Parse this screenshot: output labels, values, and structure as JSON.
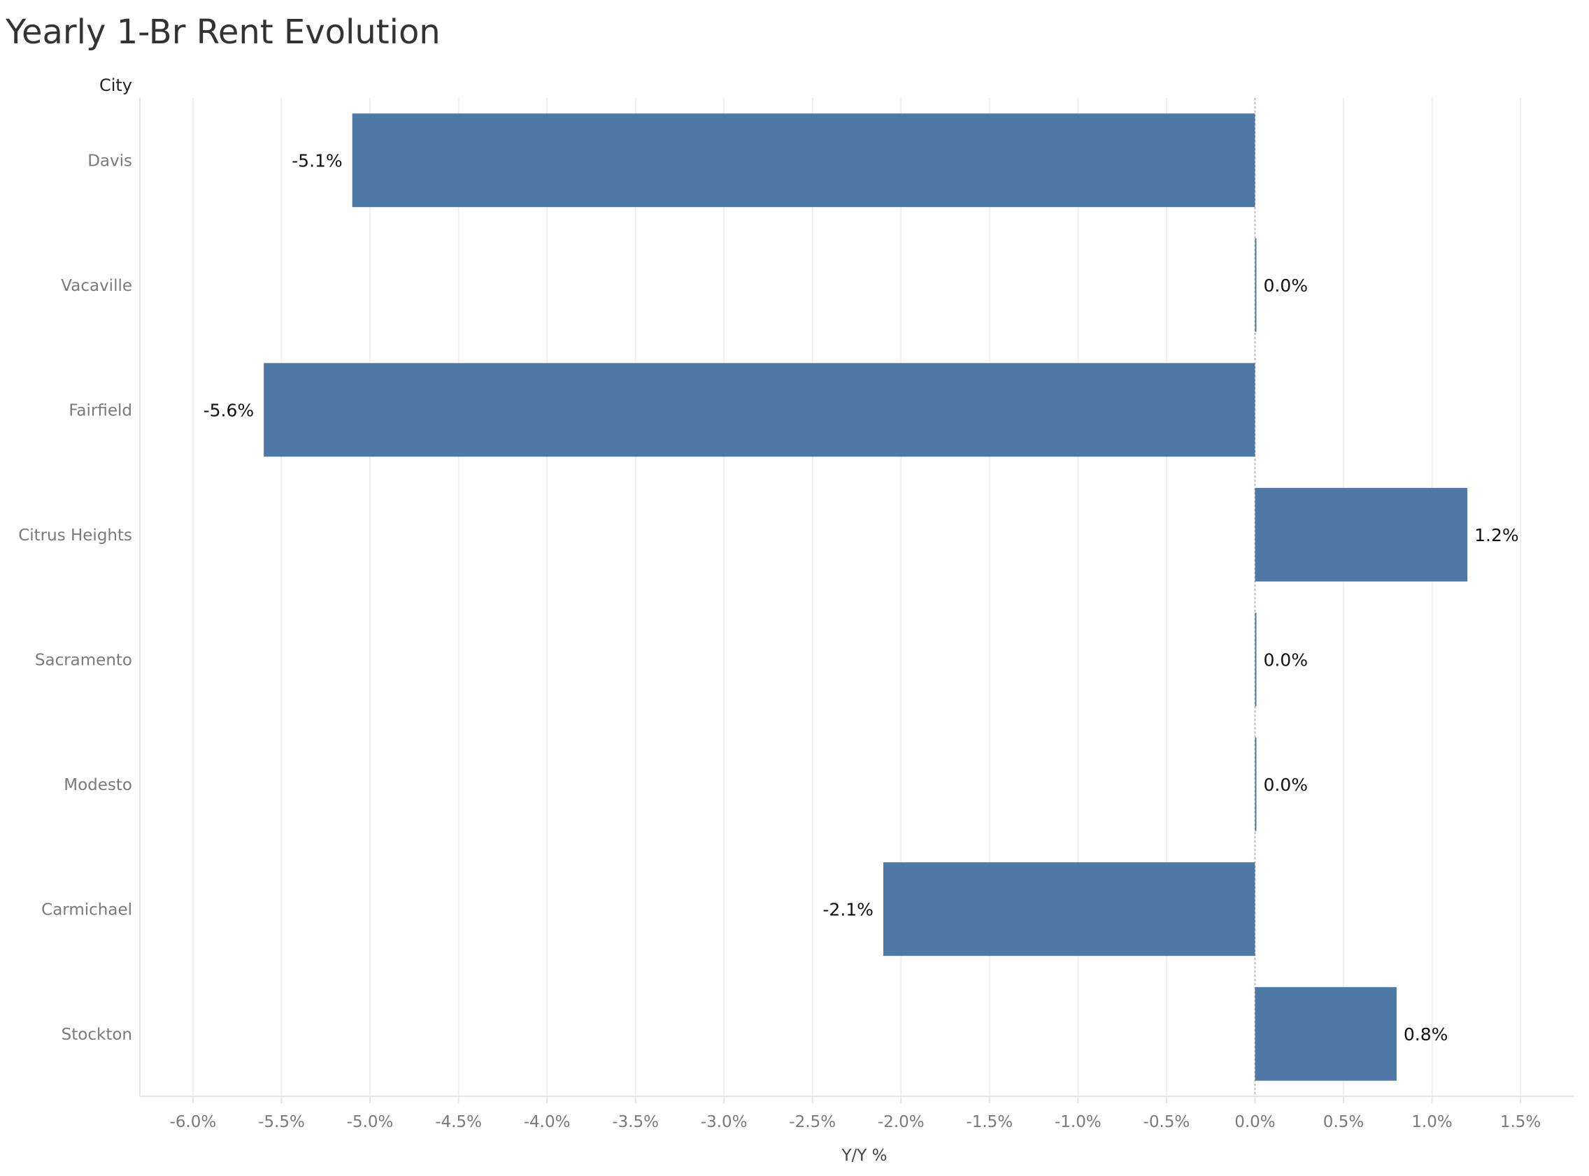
{
  "chart_data": {
    "type": "bar",
    "orientation": "horizontal",
    "title": "Yearly 1-Br Rent Evolution",
    "category_axis_title": "City",
    "xlabel": "Y/Y %",
    "categories": [
      "Davis",
      "Vacaville",
      "Fairfield",
      "Citrus Heights",
      "Sacramento",
      "Modesto",
      "Carmichael",
      "Stockton"
    ],
    "values": [
      -5.1,
      0.0,
      -5.6,
      1.2,
      0.0,
      0.0,
      -2.1,
      0.8
    ],
    "value_labels": [
      "-5.1%",
      "0.0%",
      "-5.6%",
      "1.2%",
      "0.0%",
      "0.0%",
      "-2.1%",
      "0.8%"
    ],
    "xlim": [
      -6.3,
      1.8
    ],
    "x_ticks": [
      -6.0,
      -5.5,
      -5.0,
      -4.5,
      -4.0,
      -3.5,
      -3.0,
      -2.5,
      -2.0,
      -1.5,
      -1.0,
      -0.5,
      0.0,
      0.5,
      1.0,
      1.5
    ],
    "x_tick_labels": [
      "-6.0%",
      "-5.5%",
      "-5.0%",
      "-4.5%",
      "-4.0%",
      "-3.5%",
      "-3.0%",
      "-2.5%",
      "-2.0%",
      "-1.5%",
      "-1.0%",
      "-0.5%",
      "0.0%",
      "0.5%",
      "1.0%",
      "1.5%"
    ],
    "grid": true,
    "legend": "none",
    "bar_color": "#4e78a6"
  }
}
